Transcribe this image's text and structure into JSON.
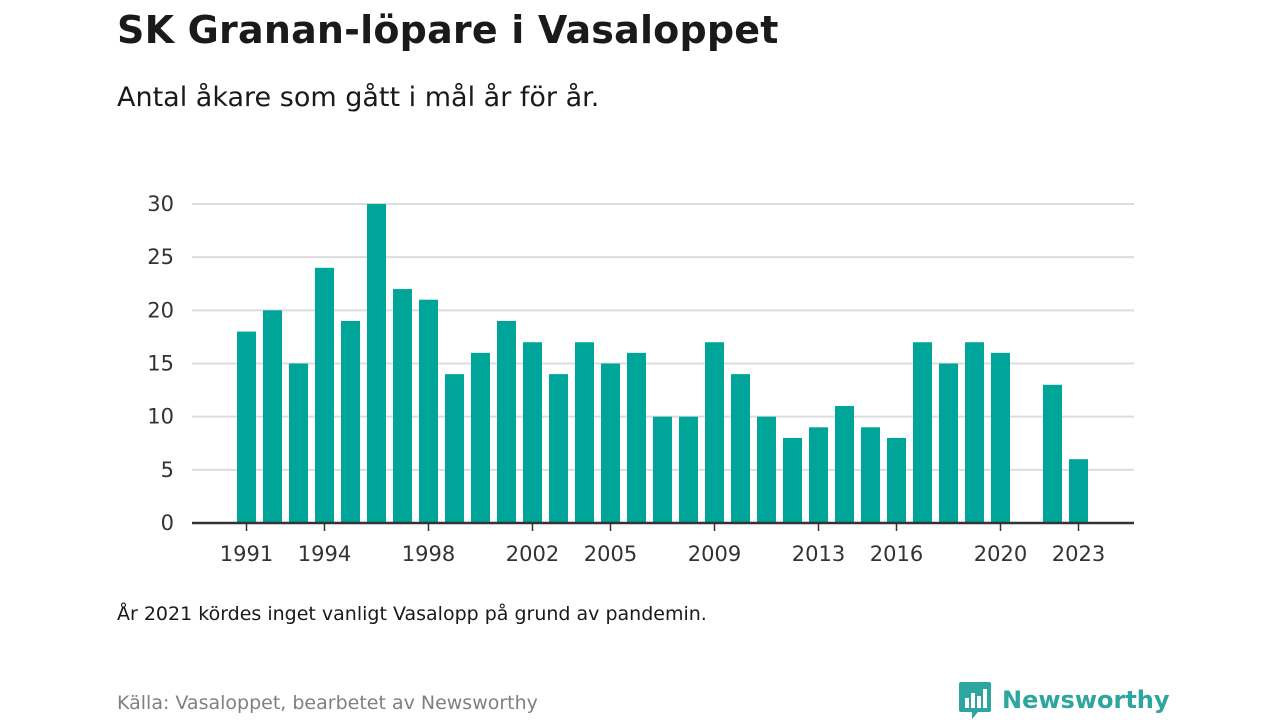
{
  "header": {
    "title": "SK Granan-löpare i Vasaloppet",
    "subtitle": "Antal åkare som gått i mål år för år."
  },
  "footer": {
    "note": "År 2021 kördes inget vanligt Vasalopp på grund av pandemin.",
    "source": "Källa: Vasaloppet, bearbetet av Newsworthy",
    "brand": "Newsworthy"
  },
  "colors": {
    "bar": "#00a59a",
    "grid": "#dcdcdc",
    "axis": "#333333",
    "brand": "#2ea59e"
  },
  "icons": {
    "brand_logo": "newsworthy-chart-bubble-icon"
  },
  "chart_data": {
    "type": "bar",
    "x": [
      1991,
      1992,
      1993,
      1994,
      1995,
      1996,
      1997,
      1998,
      1999,
      2000,
      2001,
      2002,
      2003,
      2004,
      2005,
      2006,
      2007,
      2008,
      2009,
      2010,
      2011,
      2012,
      2013,
      2014,
      2015,
      2016,
      2017,
      2018,
      2019,
      2020,
      2021,
      2022,
      2023
    ],
    "values": [
      18,
      20,
      15,
      24,
      19,
      30,
      22,
      21,
      14,
      16,
      19,
      17,
      14,
      17,
      15,
      16,
      10,
      10,
      17,
      14,
      10,
      8,
      9,
      11,
      9,
      8,
      17,
      15,
      17,
      16,
      null,
      13,
      6
    ],
    "x_tick_labels": [
      "1991",
      "1994",
      "1998",
      "2002",
      "2005",
      "2009",
      "2013",
      "2016",
      "2020",
      "2023"
    ],
    "y_ticks": [
      0,
      5,
      10,
      15,
      20,
      25,
      30
    ],
    "ylim": [
      0,
      30
    ],
    "grid": true,
    "legend": "none"
  }
}
